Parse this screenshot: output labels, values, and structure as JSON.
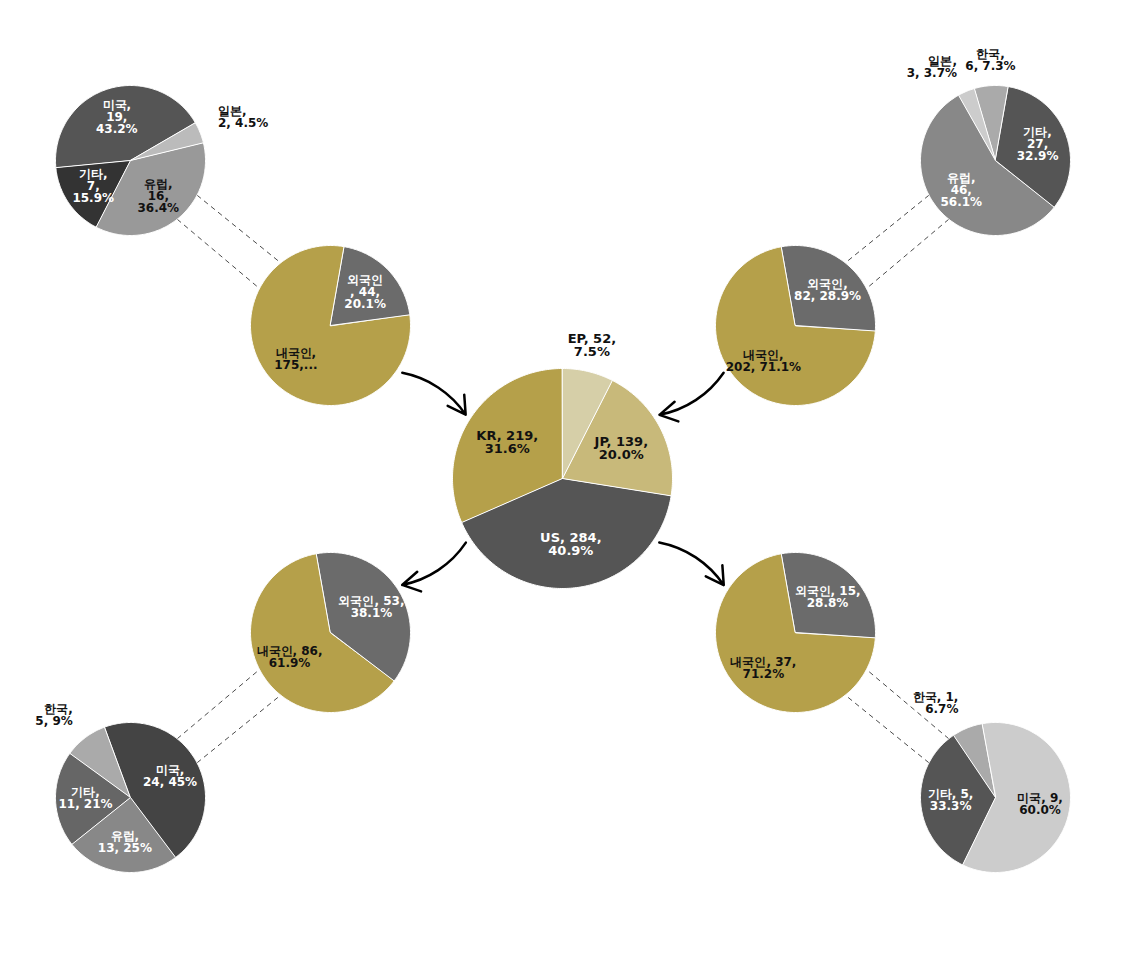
{
  "chart_data": [
    {
      "type": "pie",
      "values": [
        219,
        284,
        139,
        52
      ],
      "value_labels": [
        "KR, 219,\n31.6%",
        "US, 284,\n40.9%",
        "JP, 139,\n20.0%",
        "EP, 52,\n7.5%"
      ],
      "colors": [
        "#b5a04a",
        "#555555",
        "#c8b97a",
        "#d6cfa8"
      ]
    },
    {
      "type": "pie",
      "values": [
        175,
        44
      ],
      "value_labels": [
        "내국인,\n175,...",
        "외국인\n, 44,\n20.1%"
      ],
      "colors": [
        "#b5a04a",
        "#6b6b6b"
      ]
    },
    {
      "type": "pie",
      "values": [
        19,
        7,
        16,
        2
      ],
      "value_labels": [
        "미국,\n19,\n43.2%",
        "기타,\n7,\n15.9%",
        "유럽,\n16,\n36.4%",
        "일본,\n2, 4.5%"
      ],
      "colors": [
        "#555555",
        "#333333",
        "#999999",
        "#bbbbbb"
      ]
    },
    {
      "type": "pie",
      "values": [
        202,
        82
      ],
      "value_labels": [
        "내국인,\n202, 71.1%",
        "외국인,\n82, 28.9%"
      ],
      "colors": [
        "#b5a04a",
        "#6b6b6b"
      ]
    },
    {
      "type": "pie",
      "values": [
        6,
        3,
        46,
        27
      ],
      "value_labels": [
        "한국,\n6, 7.3%",
        "일본,\n3, 3.7%",
        "유럽,\n46,\n56.1%",
        "기타,\n27,\n32.9%"
      ],
      "colors": [
        "#aaaaaa",
        "#cccccc",
        "#888888",
        "#555555"
      ]
    },
    {
      "type": "pie",
      "values": [
        86,
        53
      ],
      "value_labels": [
        "내국인, 86,\n61.9%",
        "외국인, 53,\n38.1%"
      ],
      "colors": [
        "#b5a04a",
        "#6b6b6b"
      ]
    },
    {
      "type": "pie",
      "values": [
        5,
        11,
        13,
        24
      ],
      "value_labels": [
        "한국,\n5, 9%",
        "기타,\n11, 21%",
        "유럽,\n13, 25%",
        "미국,\n24, 45%"
      ],
      "colors": [
        "#aaaaaa",
        "#666666",
        "#888888",
        "#444444"
      ]
    },
    {
      "type": "pie",
      "values": [
        37,
        15
      ],
      "value_labels": [
        "내국인, 37,\n71.2%",
        "외국인, 15,\n28.8%"
      ],
      "colors": [
        "#b5a04a",
        "#6b6b6b"
      ]
    },
    {
      "type": "pie",
      "values": [
        1,
        5,
        9
      ],
      "value_labels": [
        "한국, 1,\n6.7%",
        "기타, 5,\n33.3%",
        "미국, 9,\n60.0%"
      ],
      "colors": [
        "#aaaaaa",
        "#555555",
        "#cccccc"
      ]
    }
  ]
}
